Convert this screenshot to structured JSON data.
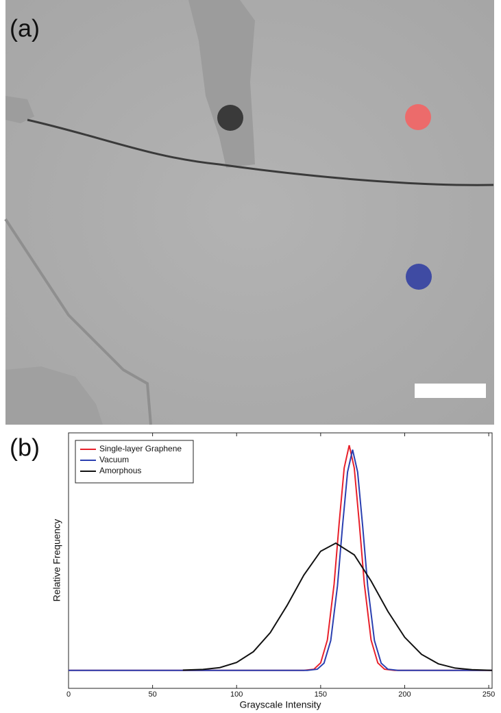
{
  "panel_labels": {
    "a": "(a)",
    "b": "(b)"
  },
  "chart_data": {
    "type": "line",
    "xlabel": "Grayscale Intensity",
    "ylabel": "Relative Frequency",
    "xlim": [
      0,
      252
    ],
    "ylim": [
      -0.08,
      1.055
    ],
    "xticks": [
      0,
      50,
      100,
      150,
      200,
      250
    ],
    "legend": "upper left",
    "series": [
      {
        "name": "Single-layer Graphene",
        "color": "#e8202a",
        "x": [
          0,
          140,
          146,
          150,
          154,
          158,
          161,
          164,
          167,
          170,
          173,
          176,
          180,
          184,
          188,
          194,
          252
        ],
        "values": [
          0,
          0,
          0.005,
          0.033,
          0.135,
          0.383,
          0.653,
          0.899,
          1,
          0.899,
          0.653,
          0.383,
          0.135,
          0.033,
          0.005,
          0,
          0
        ]
      },
      {
        "name": "Vacuum",
        "color": "#2a3fb0",
        "x": [
          0,
          142,
          148,
          152,
          156,
          160,
          163,
          166,
          169,
          172,
          175,
          178,
          182,
          186,
          190,
          196,
          252
        ],
        "values": [
          0,
          0,
          0.005,
          0.032,
          0.132,
          0.375,
          0.64,
          0.881,
          0.98,
          0.881,
          0.64,
          0.375,
          0.132,
          0.032,
          0.005,
          0,
          0
        ]
      },
      {
        "name": "Amorphous",
        "color": "#111111",
        "x": [
          68,
          80,
          90,
          100,
          110,
          120,
          130,
          140,
          150,
          159,
          170,
          180,
          190,
          200,
          210,
          220,
          230,
          240,
          252
        ],
        "values": [
          0.001,
          0.004,
          0.012,
          0.035,
          0.083,
          0.167,
          0.288,
          0.423,
          0.529,
          0.565,
          0.513,
          0.397,
          0.262,
          0.147,
          0.071,
          0.029,
          0.01,
          0.003,
          0
        ]
      }
    ]
  }
}
